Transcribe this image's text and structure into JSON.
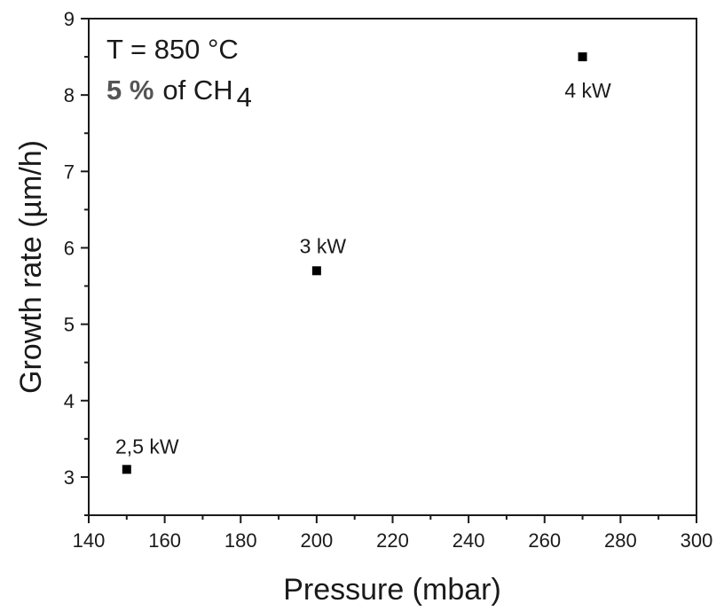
{
  "chart_data": {
    "type": "scatter",
    "xlabel": "Pressure (mbar)",
    "ylabel": "Growth rate (µm/h)",
    "xlim": [
      140,
      300
    ],
    "ylim": [
      2.5,
      9
    ],
    "x_ticks": [
      140,
      160,
      180,
      200,
      220,
      240,
      260,
      280,
      300
    ],
    "y_ticks": [
      3,
      4,
      5,
      6,
      7,
      8,
      9
    ],
    "grid": false,
    "marker": "square",
    "marker_color": "#000000",
    "points": [
      {
        "x": 150,
        "y": 3.1,
        "label": "2,5 kW"
      },
      {
        "x": 200,
        "y": 5.7,
        "label": "3 kW"
      },
      {
        "x": 270,
        "y": 8.5,
        "label": "4 kW"
      }
    ],
    "annotation": {
      "line1": "T = 850 °C",
      "line2_value": "5 %",
      "line2_rest": "of CH",
      "line2_subscript": "4"
    }
  }
}
